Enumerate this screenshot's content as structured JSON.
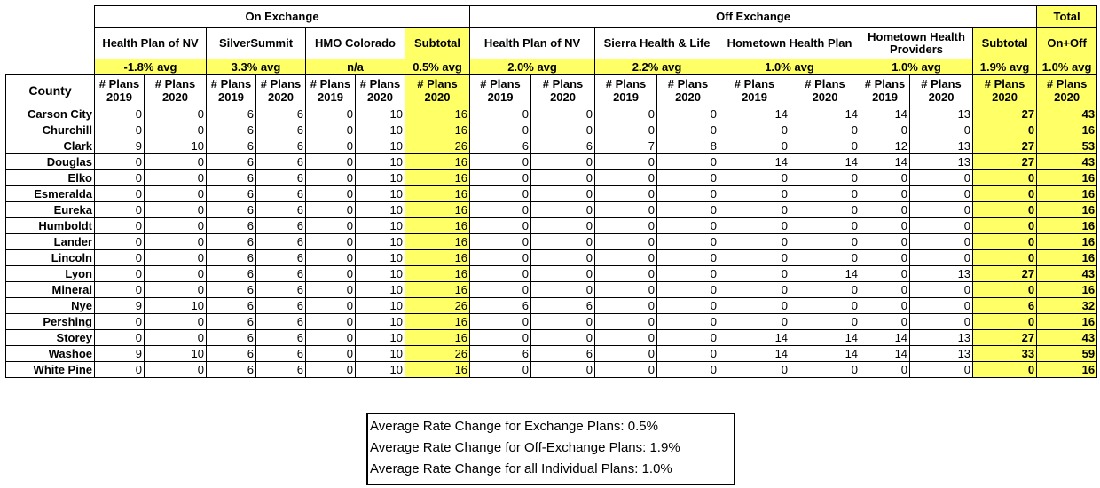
{
  "table": {
    "group_headers": [
      "On Exchange",
      "Off Exchange",
      "Total"
    ],
    "plan_headers": [
      "Health Plan of NV",
      "SilverSummit",
      "HMO Colorado",
      "Subtotal",
      "Health Plan of NV",
      "Sierra Health & Life",
      "Hometown Health Plan",
      "Hometown Health Providers",
      "Subtotal",
      "On+Off"
    ],
    "averages": [
      "-1.8% avg",
      "3.3% avg",
      "n/a",
      "0.5% avg",
      "2.0% avg",
      "2.2% avg",
      "1.0% avg",
      "1.0% avg",
      "1.9% avg",
      "1.0% avg"
    ],
    "column_headers": [
      "County",
      "# Plans 2019",
      "# Plans 2020",
      "# Plans 2019",
      "# Plans 2020",
      "# Plans 2019",
      "# Plans 2020",
      "# Plans 2020",
      "# Plans 2019",
      "# Plans 2020",
      "# Plans 2019",
      "# Plans 2020",
      "# Plans 2019",
      "# Plans 2020",
      "# Plans 2019",
      "# Plans 2020",
      "# Plans 2020",
      "# Plans 2020"
    ],
    "rows": [
      {
        "county": "Carson City",
        "values": [
          0,
          0,
          6,
          6,
          0,
          10,
          16,
          0,
          0,
          0,
          0,
          14,
          14,
          14,
          13,
          27,
          43
        ]
      },
      {
        "county": "Churchill",
        "values": [
          0,
          0,
          6,
          6,
          0,
          10,
          16,
          0,
          0,
          0,
          0,
          0,
          0,
          0,
          0,
          0,
          16
        ]
      },
      {
        "county": "Clark",
        "values": [
          9,
          10,
          6,
          6,
          0,
          10,
          26,
          6,
          6,
          7,
          8,
          0,
          0,
          12,
          13,
          27,
          53
        ]
      },
      {
        "county": "Douglas",
        "values": [
          0,
          0,
          6,
          6,
          0,
          10,
          16,
          0,
          0,
          0,
          0,
          14,
          14,
          14,
          13,
          27,
          43
        ]
      },
      {
        "county": "Elko",
        "values": [
          0,
          0,
          6,
          6,
          0,
          10,
          16,
          0,
          0,
          0,
          0,
          0,
          0,
          0,
          0,
          0,
          16
        ]
      },
      {
        "county": "Esmeralda",
        "values": [
          0,
          0,
          6,
          6,
          0,
          10,
          16,
          0,
          0,
          0,
          0,
          0,
          0,
          0,
          0,
          0,
          16
        ]
      },
      {
        "county": "Eureka",
        "values": [
          0,
          0,
          6,
          6,
          0,
          10,
          16,
          0,
          0,
          0,
          0,
          0,
          0,
          0,
          0,
          0,
          16
        ]
      },
      {
        "county": "Humboldt",
        "values": [
          0,
          0,
          6,
          6,
          0,
          10,
          16,
          0,
          0,
          0,
          0,
          0,
          0,
          0,
          0,
          0,
          16
        ]
      },
      {
        "county": "Lander",
        "values": [
          0,
          0,
          6,
          6,
          0,
          10,
          16,
          0,
          0,
          0,
          0,
          0,
          0,
          0,
          0,
          0,
          16
        ]
      },
      {
        "county": "Lincoln",
        "values": [
          0,
          0,
          6,
          6,
          0,
          10,
          16,
          0,
          0,
          0,
          0,
          0,
          0,
          0,
          0,
          0,
          16
        ]
      },
      {
        "county": "Lyon",
        "values": [
          0,
          0,
          6,
          6,
          0,
          10,
          16,
          0,
          0,
          0,
          0,
          0,
          14,
          0,
          13,
          27,
          43
        ]
      },
      {
        "county": "Mineral",
        "values": [
          0,
          0,
          6,
          6,
          0,
          10,
          16,
          0,
          0,
          0,
          0,
          0,
          0,
          0,
          0,
          0,
          16
        ]
      },
      {
        "county": "Nye",
        "values": [
          9,
          10,
          6,
          6,
          0,
          10,
          26,
          6,
          6,
          0,
          0,
          0,
          0,
          0,
          0,
          6,
          32
        ]
      },
      {
        "county": "Pershing",
        "values": [
          0,
          0,
          6,
          6,
          0,
          10,
          16,
          0,
          0,
          0,
          0,
          0,
          0,
          0,
          0,
          0,
          16
        ]
      },
      {
        "county": "Storey",
        "values": [
          0,
          0,
          6,
          6,
          0,
          10,
          16,
          0,
          0,
          0,
          0,
          14,
          14,
          14,
          13,
          27,
          43
        ]
      },
      {
        "county": "Washoe",
        "values": [
          9,
          10,
          6,
          6,
          0,
          10,
          26,
          6,
          6,
          0,
          0,
          14,
          14,
          14,
          13,
          33,
          59
        ]
      },
      {
        "county": "White Pine",
        "values": [
          0,
          0,
          6,
          6,
          0,
          10,
          16,
          0,
          0,
          0,
          0,
          0,
          0,
          0,
          0,
          0,
          16
        ]
      }
    ]
  },
  "notes": [
    "Average Rate Change for Exchange Plans: 0.5%",
    "Average Rate Change for Off-Exchange Plans: 1.9%",
    "Average Rate Change for all Individual Plans: 1.0%"
  ]
}
